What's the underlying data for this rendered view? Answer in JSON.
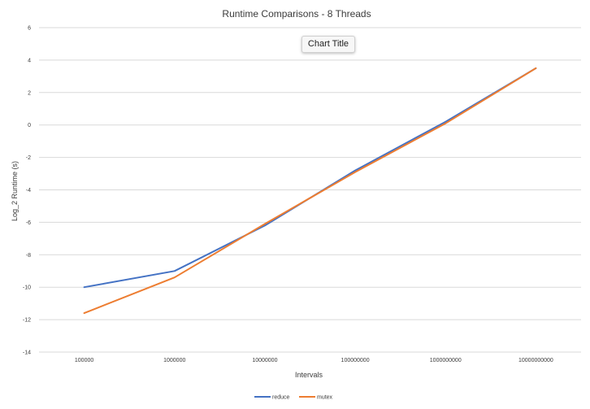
{
  "chart_data": {
    "type": "line",
    "title": "Runtime Comparisons - 8 Threads",
    "xlabel": "Intervals",
    "ylabel": "Log_2 Runtime (s)",
    "categories": [
      "100000",
      "1000000",
      "10000000",
      "100000000",
      "1000000000",
      "10000000000"
    ],
    "ylim": [
      -14,
      6
    ],
    "yticks": [
      "6",
      "4",
      "2",
      "0",
      "-2",
      "-4",
      "-6",
      "-8",
      "-10",
      "-12",
      "-14"
    ],
    "grid": true,
    "legend_position": "bottom",
    "series": [
      {
        "name": "reduce",
        "color": "#4472C4",
        "values": [
          -10.0,
          -9.0,
          -6.2,
          -2.8,
          0.2,
          3.5
        ]
      },
      {
        "name": "mutex",
        "color": "#ED7D31",
        "values": [
          -11.6,
          -9.4,
          -6.1,
          -2.9,
          0.1,
          3.5
        ]
      }
    ]
  },
  "floating_title": {
    "label": "Chart Title"
  }
}
